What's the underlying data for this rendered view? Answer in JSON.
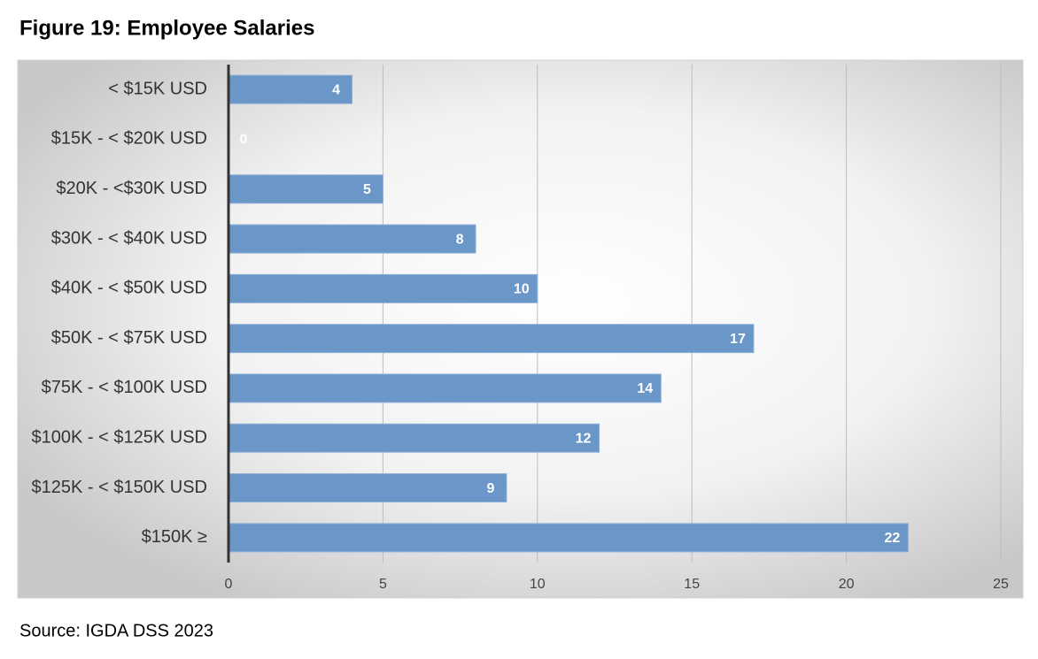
{
  "chart_data": {
    "type": "bar",
    "orientation": "horizontal",
    "title": "Figure 19: Employee Salaries",
    "source": "Source: IGDA DSS 2023",
    "categories": [
      "< $15K USD",
      "$15K - < $20K USD",
      "$20K - <$30K USD",
      "$30K - < $40K USD",
      "$40K - < $50K USD",
      "$50K - < $75K USD",
      "$75K - < $100K USD",
      "$100K - < $125K USD",
      "$125K - < $150K USD",
      "$150K ≥"
    ],
    "values": [
      4,
      0,
      5,
      8,
      10,
      17,
      14,
      12,
      9,
      22
    ],
    "color": "#6a96c8",
    "xlim": [
      0,
      25
    ],
    "xticks": [
      0,
      5,
      10,
      15,
      20,
      25
    ],
    "grid": true
  }
}
